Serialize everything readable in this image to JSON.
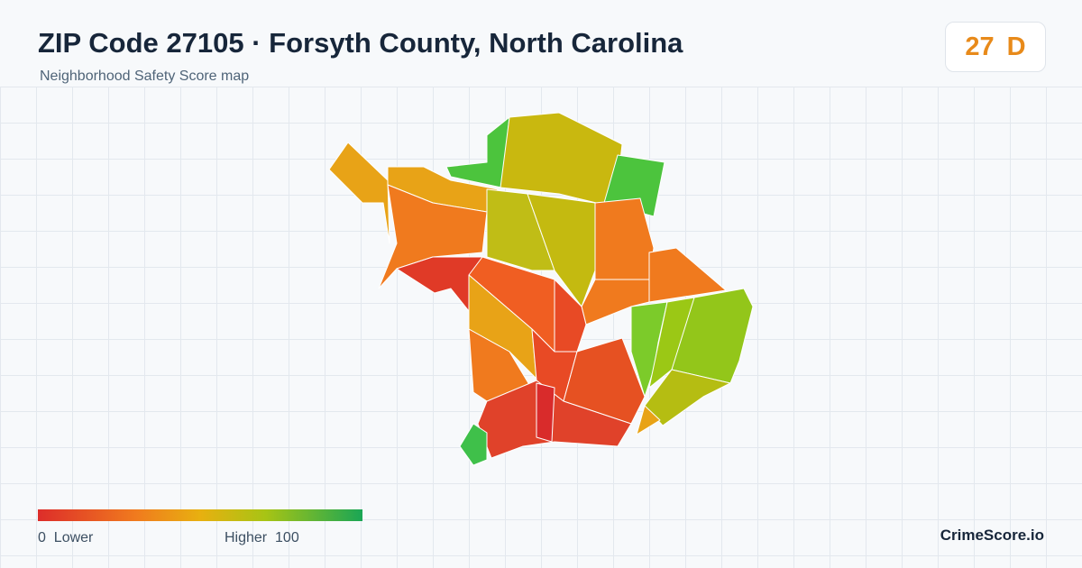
{
  "header": {
    "title": "ZIP Code 27105 · Forsyth County, North Carolina",
    "subtitle": "Neighborhood Safety Score map"
  },
  "score": {
    "value": 27,
    "grade": "D"
  },
  "legend": {
    "min": 0,
    "min_label": "Lower",
    "max_label": "Higher",
    "max": 100
  },
  "footer": {
    "brand": "CrimeScore.io"
  }
}
